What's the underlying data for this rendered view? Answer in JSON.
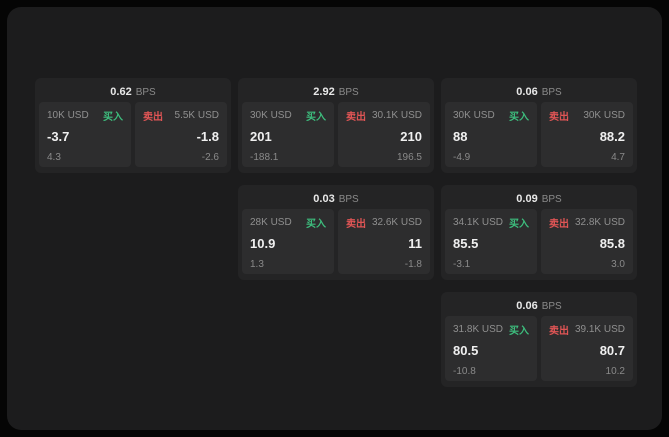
{
  "colors": {
    "buy_green": "#3dbd7d",
    "sell_red": "#e05555",
    "background": "#1c1c1d",
    "card": "#242425",
    "panel": "#2d2d2e"
  },
  "labels": {
    "bps": "BPS",
    "buy": "买入",
    "sell": "卖出"
  },
  "cards": [
    {
      "bps_value": "0.62",
      "buy_amount": "10K USD",
      "buy_value": "-3.7",
      "buy_sub": "4.3",
      "sell_amount": "5.5K USD",
      "sell_value": "-1.8",
      "sell_sub": "-2.6"
    },
    {
      "bps_value": "2.92",
      "buy_amount": "30K USD",
      "buy_value": "201",
      "buy_sub": "-188.1",
      "sell_amount": "30.1K USD",
      "sell_value": "210",
      "sell_sub": "196.5"
    },
    {
      "bps_value": "0.06",
      "buy_amount": "30K USD",
      "buy_value": "88",
      "buy_sub": "-4.9",
      "sell_amount": "30K USD",
      "sell_value": "88.2",
      "sell_sub": "4.7"
    },
    {
      "bps_value": "0.03",
      "buy_amount": "28K USD",
      "buy_value": "10.9",
      "buy_sub": "1.3",
      "sell_amount": "32.6K USD",
      "sell_value": "11",
      "sell_sub": "-1.8"
    },
    {
      "bps_value": "0.09",
      "buy_amount": "34.1K USD",
      "buy_value": "85.5",
      "buy_sub": "-3.1",
      "sell_amount": "32.8K USD",
      "sell_value": "85.8",
      "sell_sub": "3.0"
    },
    {
      "bps_value": "0.06",
      "buy_amount": "31.8K USD",
      "buy_value": "80.5",
      "buy_sub": "-10.8",
      "sell_amount": "39.1K USD",
      "sell_value": "80.7",
      "sell_sub": "10.2"
    }
  ]
}
